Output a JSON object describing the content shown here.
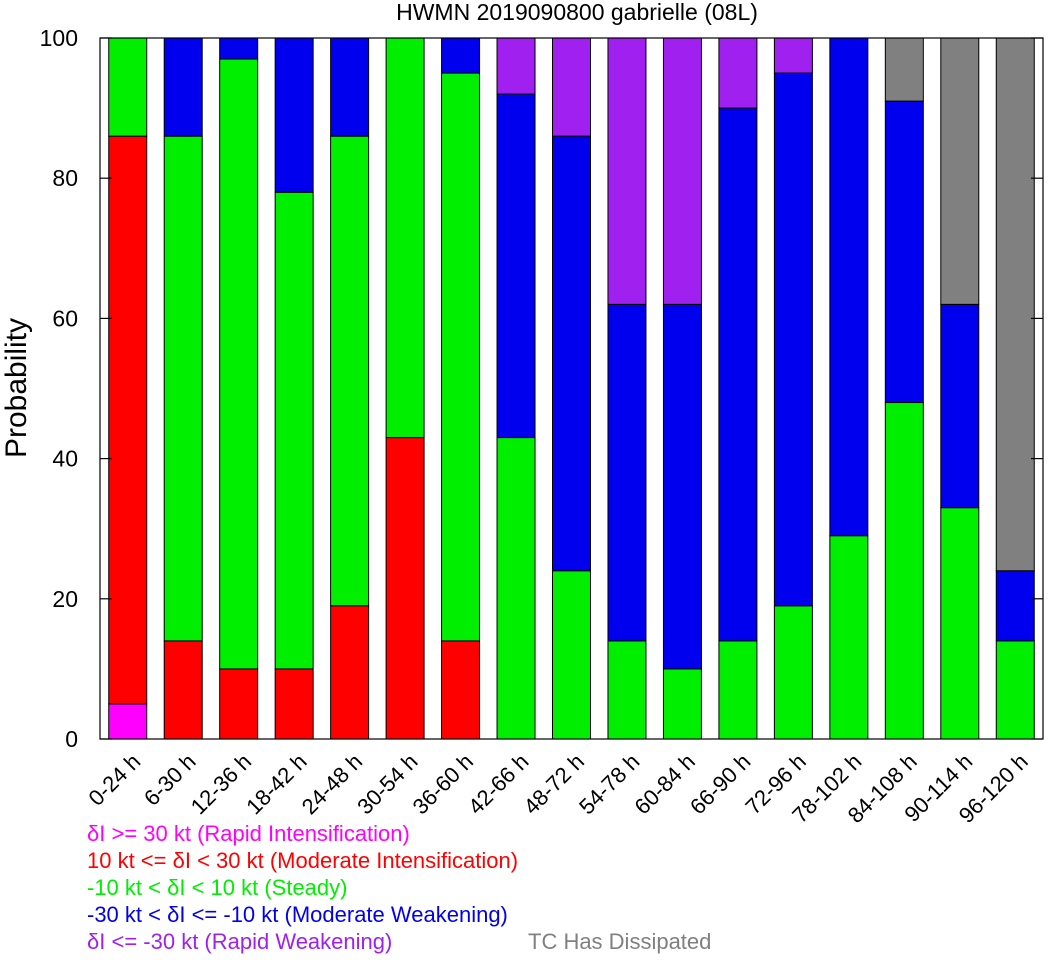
{
  "chart_data": {
    "type": "bar",
    "stacked": true,
    "title": "HWMN 2019090800 gabrielle (08L)",
    "xlabel": "",
    "ylabel": "Probability",
    "ylim": [
      0,
      100
    ],
    "yticks": [
      0,
      20,
      40,
      60,
      80,
      100
    ],
    "grid": false,
    "categories": [
      "0-24 h",
      "6-30 h",
      "12-36 h",
      "18-42 h",
      "24-48 h",
      "30-54 h",
      "36-60 h",
      "42-66 h",
      "48-72 h",
      "54-78 h",
      "60-84 h",
      "66-90 h",
      "72-96 h",
      "78-102 h",
      "84-108 h",
      "90-114 h",
      "96-120 h"
    ],
    "series": [
      {
        "name": "δI >= 30 kt (Rapid Intensification)",
        "color": "#ff00ff",
        "values": [
          5,
          0,
          0,
          0,
          0,
          0,
          0,
          0,
          0,
          0,
          0,
          0,
          0,
          0,
          0,
          0,
          0
        ]
      },
      {
        "name": "10 kt <= δI < 30 kt (Moderate Intensification)",
        "color": "#ff0000",
        "values": [
          81,
          14,
          10,
          10,
          19,
          43,
          14,
          0,
          0,
          0,
          0,
          0,
          0,
          0,
          0,
          0,
          0
        ]
      },
      {
        "name": "-10 kt < δI < 10 kt (Steady)",
        "color": "#00ee00",
        "values": [
          14,
          72,
          87,
          68,
          67,
          57,
          81,
          43,
          24,
          14,
          10,
          14,
          19,
          29,
          48,
          33,
          14
        ]
      },
      {
        "name": "-30 kt < δI <= -10 kt (Moderate Weakening)",
        "color": "#0000ee",
        "values": [
          0,
          14,
          3,
          22,
          14,
          0,
          5,
          49,
          62,
          48,
          52,
          76,
          76,
          71,
          43,
          29,
          10
        ]
      },
      {
        "name": "δI <= -30 kt (Rapid Weakening)",
        "color": "#a020f0",
        "values": [
          0,
          0,
          0,
          0,
          0,
          0,
          0,
          8,
          14,
          38,
          38,
          10,
          5,
          0,
          0,
          0,
          0
        ]
      },
      {
        "name": "TC Has Dissipated",
        "color": "#808080",
        "values": [
          0,
          0,
          0,
          0,
          0,
          0,
          0,
          0,
          0,
          0,
          0,
          0,
          0,
          0,
          9,
          38,
          76
        ]
      }
    ]
  }
}
